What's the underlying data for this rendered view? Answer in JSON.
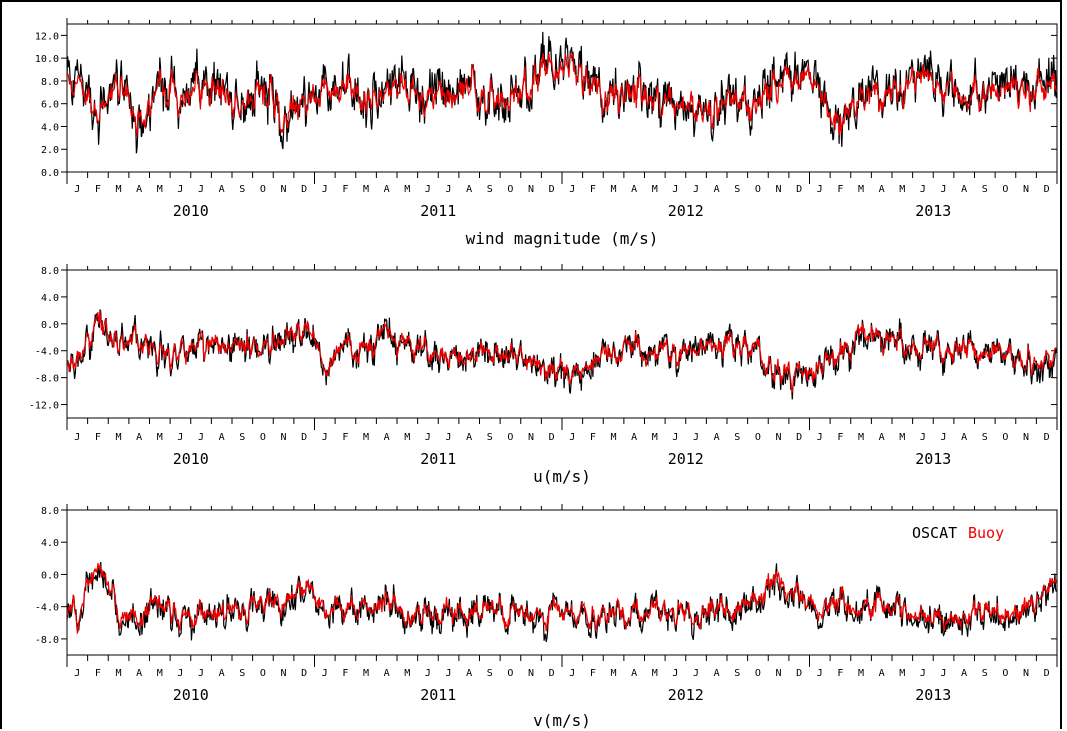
{
  "colors": {
    "oscat": "#000000",
    "buoy": "#ee0000"
  },
  "legend": {
    "oscat": "OSCAT",
    "buoy": "Buoy"
  },
  "month_letters": [
    "J",
    "F",
    "M",
    "A",
    "M",
    "J",
    "J",
    "A",
    "S",
    "O",
    "N",
    "D"
  ],
  "years": [
    "2010",
    "2011",
    "2012",
    "2013"
  ],
  "chart_data": [
    {
      "type": "line",
      "xlabel": "wind magnitude (m/s)",
      "ylabel": "",
      "x_range": [
        "2010-01",
        "2013-12"
      ],
      "ylim": [
        0,
        13
      ],
      "yticks": [
        0,
        2,
        4,
        6,
        8,
        10,
        12
      ],
      "ytick_labels": [
        "0.0",
        "2.0",
        "4.0",
        "6.0",
        "8.0",
        "10.0",
        "12.0"
      ],
      "months": [
        "2010-01",
        "2010-02",
        "2010-03",
        "2010-04",
        "2010-05",
        "2010-06",
        "2010-07",
        "2010-08",
        "2010-09",
        "2010-10",
        "2010-11",
        "2010-12",
        "2011-01",
        "2011-02",
        "2011-03",
        "2011-04",
        "2011-05",
        "2011-06",
        "2011-07",
        "2011-08",
        "2011-09",
        "2011-10",
        "2011-11",
        "2011-12",
        "2012-01",
        "2012-02",
        "2012-03",
        "2012-04",
        "2012-05",
        "2012-06",
        "2012-07",
        "2012-08",
        "2012-09",
        "2012-10",
        "2012-11",
        "2012-12",
        "2013-01",
        "2013-02",
        "2013-03",
        "2013-04",
        "2013-05",
        "2013-06",
        "2013-07",
        "2013-08",
        "2013-09",
        "2013-10",
        "2013-11",
        "2013-12"
      ],
      "series": [
        {
          "name": "OSCAT",
          "color": "#000000",
          "values": [
            7.8,
            6.0,
            7.5,
            4.5,
            8.5,
            7.0,
            6.5,
            7.0,
            5.5,
            7.5,
            4.5,
            6.0,
            8.0,
            7.5,
            6.0,
            7.0,
            7.0,
            7.2,
            6.8,
            7.5,
            7.0,
            7.0,
            8.0,
            9.0,
            9.5,
            7.5,
            7.0,
            7.5,
            6.5,
            6.0,
            6.0,
            5.5,
            6.5,
            5.0,
            8.0,
            9.0,
            7.0,
            4.0,
            7.0,
            7.5,
            7.0,
            8.0,
            7.5,
            6.5,
            7.5,
            8.0,
            7.0,
            8.5
          ],
          "spread": 2.4
        },
        {
          "name": "Buoy",
          "color": "#ee0000",
          "values": [
            7.5,
            5.8,
            7.2,
            4.8,
            8.2,
            6.8,
            6.3,
            6.8,
            5.8,
            7.2,
            4.8,
            6.0,
            7.6,
            7.2,
            6.2,
            6.8,
            6.8,
            7.0,
            6.6,
            7.2,
            6.8,
            6.8,
            7.8,
            8.6,
            9.0,
            7.2,
            6.8,
            7.2,
            6.4,
            6.0,
            6.0,
            5.6,
            6.4,
            5.2,
            7.6,
            8.6,
            6.8,
            4.4,
            6.8,
            7.2,
            6.8,
            7.6,
            7.2,
            6.4,
            7.2,
            7.6,
            6.8,
            8.0
          ],
          "spread": 1.8
        }
      ]
    },
    {
      "type": "line",
      "xlabel": "u(m/s)",
      "ylabel": "",
      "x_range": [
        "2010-01",
        "2013-12"
      ],
      "ylim": [
        -14,
        8
      ],
      "yticks": [
        -12,
        -8,
        -4,
        0,
        4,
        8
      ],
      "ytick_labels": [
        "-12.0",
        "-8.0",
        "-4.0",
        "0.0",
        "4.0",
        "8.0"
      ],
      "months": [
        "2010-01",
        "2010-02",
        "2010-03",
        "2010-04",
        "2010-05",
        "2010-06",
        "2010-07",
        "2010-08",
        "2010-09",
        "2010-10",
        "2010-11",
        "2010-12",
        "2011-01",
        "2011-02",
        "2011-03",
        "2011-04",
        "2011-05",
        "2011-06",
        "2011-07",
        "2011-08",
        "2011-09",
        "2011-10",
        "2011-11",
        "2011-12",
        "2012-01",
        "2012-02",
        "2012-03",
        "2012-04",
        "2012-05",
        "2012-06",
        "2012-07",
        "2012-08",
        "2012-09",
        "2012-10",
        "2012-11",
        "2012-12",
        "2013-01",
        "2013-02",
        "2013-03",
        "2013-04",
        "2013-05",
        "2013-06",
        "2013-07",
        "2013-08",
        "2013-09",
        "2013-10",
        "2013-11",
        "2013-12"
      ],
      "series": [
        {
          "name": "OSCAT",
          "color": "#000000",
          "values": [
            -5.0,
            0.0,
            -4.0,
            -2.0,
            -5.0,
            -4.0,
            -3.0,
            -4.0,
            -3.5,
            -3.0,
            -2.0,
            0.0,
            -6.0,
            -3.0,
            -4.0,
            -1.0,
            -3.0,
            -5.0,
            -5.0,
            -5.0,
            -4.5,
            -5.0,
            -6.0,
            -7.5,
            -8.5,
            -6.5,
            -4.0,
            -3.5,
            -5.0,
            -4.5,
            -4.0,
            -3.5,
            -3.5,
            -4.0,
            -8.0,
            -8.0,
            -7.0,
            -5.0,
            -1.0,
            -3.0,
            -3.0,
            -4.0,
            -3.5,
            -3.5,
            -4.5,
            -5.0,
            -6.0,
            -6.0
          ],
          "spread": 2.6
        },
        {
          "name": "Buoy",
          "color": "#ee0000",
          "values": [
            -4.8,
            0.5,
            -3.8,
            -2.2,
            -4.8,
            -3.8,
            -3.0,
            -3.8,
            -3.4,
            -3.0,
            -2.0,
            0.5,
            -5.8,
            -3.0,
            -3.8,
            -1.0,
            -3.0,
            -4.8,
            -4.8,
            -4.8,
            -4.4,
            -4.8,
            -5.8,
            -7.2,
            -8.0,
            -6.2,
            -4.0,
            -3.5,
            -4.8,
            -4.4,
            -4.0,
            -3.4,
            -3.4,
            -4.0,
            -7.6,
            -7.6,
            -6.8,
            -4.8,
            -0.5,
            -3.0,
            -3.0,
            -3.8,
            -3.4,
            -3.4,
            -4.4,
            -4.8,
            -5.8,
            -5.0
          ],
          "spread": 2.2
        }
      ]
    },
    {
      "type": "line",
      "xlabel": "v(m/s)",
      "ylabel": "",
      "x_range": [
        "2010-01",
        "2013-12"
      ],
      "ylim": [
        -10,
        8
      ],
      "yticks": [
        -8,
        -4,
        0,
        4,
        8
      ],
      "ytick_labels": [
        "-8.0",
        "-4.0",
        "0.0",
        "4.0",
        "8.0"
      ],
      "legend_position": "top-right",
      "months": [
        "2010-01",
        "2010-02",
        "2010-03",
        "2010-04",
        "2010-05",
        "2010-06",
        "2010-07",
        "2010-08",
        "2010-09",
        "2010-10",
        "2010-11",
        "2010-12",
        "2011-01",
        "2011-02",
        "2011-03",
        "2011-04",
        "2011-05",
        "2011-06",
        "2011-07",
        "2011-08",
        "2011-09",
        "2011-10",
        "2011-11",
        "2011-12",
        "2012-01",
        "2012-02",
        "2012-03",
        "2012-04",
        "2012-05",
        "2012-06",
        "2012-07",
        "2012-08",
        "2012-09",
        "2012-10",
        "2012-11",
        "2012-12",
        "2013-01",
        "2013-02",
        "2013-03",
        "2013-04",
        "2013-05",
        "2013-06",
        "2013-07",
        "2013-08",
        "2013-09",
        "2013-10",
        "2013-11",
        "2013-12"
      ],
      "series": [
        {
          "name": "OSCAT",
          "color": "#000000",
          "values": [
            -5.0,
            1.0,
            -5.0,
            -6.0,
            -3.0,
            -6.0,
            -5.0,
            -5.0,
            -4.5,
            -4.0,
            -3.5,
            -2.0,
            -4.0,
            -4.5,
            -5.0,
            -3.5,
            -5.0,
            -5.0,
            -5.5,
            -5.0,
            -4.5,
            -5.0,
            -4.5,
            -5.0,
            -5.0,
            -5.5,
            -4.5,
            -5.0,
            -4.5,
            -5.5,
            -5.5,
            -4.5,
            -4.0,
            -3.5,
            -1.0,
            -3.0,
            -4.0,
            -4.0,
            -4.5,
            -3.5,
            -4.5,
            -5.5,
            -5.5,
            -6.0,
            -5.0,
            -5.0,
            -4.5,
            -2.0
          ],
          "spread": 2.2
        },
        {
          "name": "Buoy",
          "color": "#ee0000",
          "values": [
            -4.8,
            1.5,
            -4.8,
            -5.8,
            -2.8,
            -5.6,
            -4.8,
            -4.8,
            -4.4,
            -3.8,
            -3.2,
            -1.5,
            -3.8,
            -4.4,
            -4.8,
            -3.4,
            -4.8,
            -4.8,
            -5.2,
            -4.8,
            -4.4,
            -4.8,
            -4.4,
            -4.8,
            -4.8,
            -5.2,
            -4.4,
            -4.8,
            -4.4,
            -5.2,
            -5.2,
            -4.4,
            -3.8,
            -3.0,
            -0.5,
            -2.8,
            -3.8,
            -3.8,
            -4.4,
            -3.4,
            -4.4,
            -5.2,
            -5.2,
            -5.6,
            -4.8,
            -4.8,
            -4.2,
            -1.5
          ],
          "spread": 1.8
        }
      ]
    }
  ]
}
